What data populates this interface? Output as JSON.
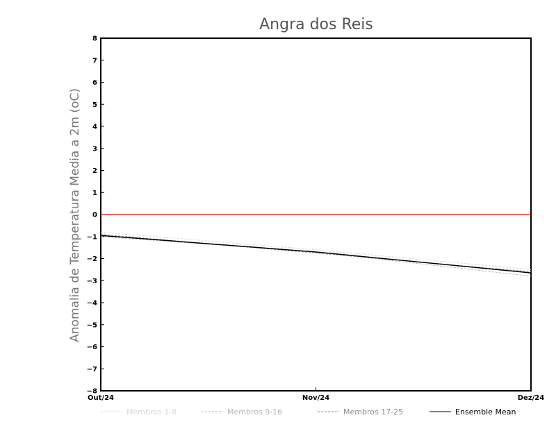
{
  "chart_data": {
    "type": "line",
    "title": "Angra dos Reis",
    "xlabel": "",
    "ylabel": "Anomalia de Temperatura Media a 2m (oC)",
    "x": [
      "Out/24",
      "Nov/24",
      "Dez/24"
    ],
    "ylim": [
      -8,
      8
    ],
    "yticks": [
      8,
      7,
      6,
      5,
      4,
      3,
      2,
      1,
      0,
      -1,
      -2,
      -3,
      -4,
      -5,
      -6,
      -7,
      -8
    ],
    "reference_line": {
      "value": 0,
      "color": "#ff0000"
    },
    "series": [
      {
        "name": "Membros 1-8",
        "color": "#d9d9d9",
        "style": "dashed",
        "values": [
          -0.8,
          -1.6,
          -2.5
        ]
      },
      {
        "name": "Membros 9-16",
        "color": "#b5b5b5",
        "style": "dashed",
        "values": [
          -1.0,
          -1.7,
          -2.8
        ]
      },
      {
        "name": "Membros 17-25",
        "color": "#8c8c8c",
        "style": "dashed",
        "values": [
          -0.9,
          -1.75,
          -2.6
        ]
      },
      {
        "name": "Ensemble Mean",
        "color": "#000000",
        "style": "solid",
        "values": [
          -0.95,
          -1.7,
          -2.65
        ]
      }
    ],
    "grid": false,
    "legend_position": "bottom"
  }
}
